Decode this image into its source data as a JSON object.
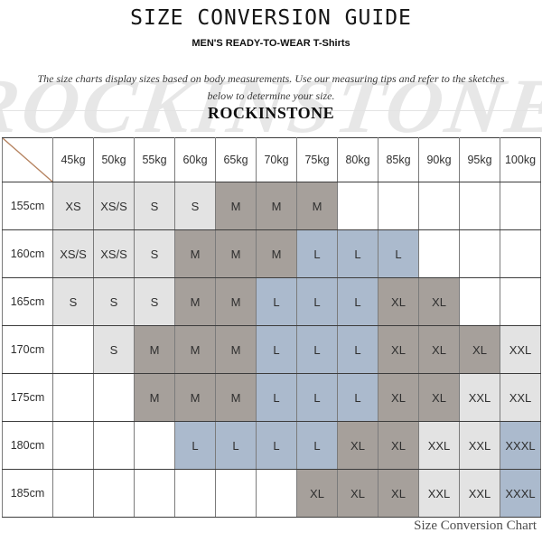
{
  "header": {
    "title": "SIZE CONVERSION GUIDE",
    "subtitle": "MEN'S READY-TO-WEAR T-Shirts",
    "description_line1": "The size charts display sizes based on body measurements. Use our measuring tips and refer to the sketches",
    "description_line2": "below to determine your size.",
    "brand": "ROCKINSTONE",
    "watermark_text": "ROCKINSTONE"
  },
  "footer": {
    "caption": "Size Conversion Chart"
  },
  "chart_data": {
    "type": "table",
    "title": "SIZE CONVERSION GUIDE",
    "weight_headers": [
      "45kg",
      "50kg",
      "55kg",
      "60kg",
      "65kg",
      "70kg",
      "75kg",
      "80kg",
      "85kg",
      "90kg",
      "95kg",
      "100kg"
    ],
    "height_rows": [
      "155cm",
      "160cm",
      "165cm",
      "170cm",
      "175cm",
      "180cm",
      "185cm"
    ],
    "cells": [
      [
        "XS",
        "XS/S",
        "S",
        "S",
        "M",
        "M",
        "M",
        null,
        null,
        null,
        null,
        null
      ],
      [
        "XS/S",
        "XS/S",
        "S",
        "M",
        "M",
        "M",
        "L",
        "L",
        "L",
        null,
        null,
        null
      ],
      [
        "S",
        "S",
        "S",
        "M",
        "M",
        "L",
        "L",
        "L",
        "XL",
        "XL",
        null,
        null
      ],
      [
        null,
        "S",
        "M",
        "M",
        "M",
        "L",
        "L",
        "L",
        "XL",
        "XL",
        "XL",
        "XXL"
      ],
      [
        null,
        null,
        "M",
        "M",
        "M",
        "L",
        "L",
        "L",
        "XL",
        "XL",
        "XXL",
        "XXL"
      ],
      [
        null,
        null,
        null,
        "L",
        "L",
        "L",
        "L",
        "XL",
        "XL",
        "XXL",
        "XXL",
        "XXXL"
      ],
      [
        null,
        null,
        null,
        null,
        null,
        null,
        "XL",
        "XL",
        "XL",
        "XXL",
        "XXL",
        "XXXL"
      ]
    ],
    "size_colors": {
      "XS": "#e3e3e3",
      "XS/S": "#e3e3e3",
      "S": "#e3e3e3",
      "M": "#a6a09b",
      "L": "#abbacd",
      "XL": "#a6a09b",
      "XXL": "#e3e3e3",
      "XXXL": "#abbacd"
    },
    "empty_color": "#ffffff",
    "diagonal_line_color": "#b5825f",
    "watermark_color": "#e7e7e7"
  }
}
